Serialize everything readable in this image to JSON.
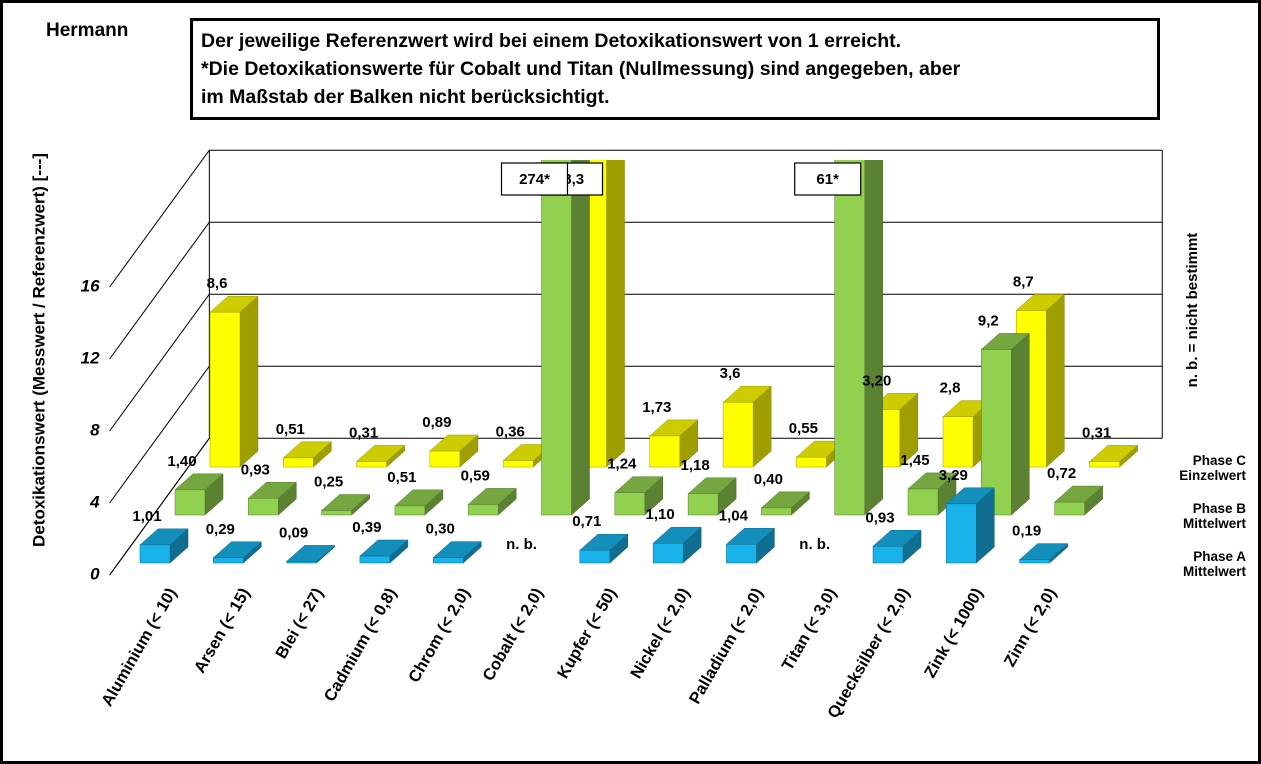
{
  "chart_data": {
    "type": "bar3d",
    "title": "Hermann",
    "note": [
      "Der jeweilige Referenzwert wird bei einem Detoxikationswert von 1 erreicht.",
      "*Die Detoxikationswerte für Cobalt und Titan (Nullmessung) sind angegeben, aber",
      "im Maßstab der Balken nicht berücksichtigt."
    ],
    "y_label": "Detoxikationswert (Messwert / Referenzwert) [---]",
    "side_note": "n. b. = nicht bestimmt",
    "categories": [
      "Aluminium (< 10)",
      "Arsen (< 15)",
      "Blei (< 27)",
      "Cadmium (< 0,8)",
      "Chrom (< 2,0)",
      "Cobalt (< 2,0)",
      "Kupfer (< 50)",
      "Nickel (< 2,0)",
      "Palladium (< 2,0)",
      "Titan (< 3,0)",
      "Quecksilber (< 2,0)",
      "Zink (< 1000)",
      "Zinn (< 2,0)"
    ],
    "series": [
      {
        "name": "Phase A Mittelwert",
        "color": "#19b2ea",
        "values": [
          1.01,
          0.29,
          0.09,
          0.39,
          0.3,
          null,
          0.71,
          1.1,
          1.04,
          null,
          0.93,
          3.29,
          0.19
        ],
        "value_labels": [
          "1,01",
          "0,29",
          "0,09",
          "0,39",
          "0,30",
          "n. b.",
          "0,71",
          "1,10",
          "1,04",
          "n. b.",
          "0,93",
          "3,29",
          "0,19"
        ]
      },
      {
        "name": "Phase B Mittelwert",
        "color": "#92d050",
        "values": [
          1.4,
          0.93,
          0.25,
          0.51,
          0.59,
          274,
          1.24,
          1.18,
          0.4,
          61,
          1.45,
          9.2,
          0.72
        ],
        "value_labels": [
          "1,40",
          "0,93",
          "0,25",
          "0,51",
          "0,59",
          "274*",
          "1,24",
          "1,18",
          "0,40",
          "61*",
          "1,45",
          "9,2",
          "0,72"
        ]
      },
      {
        "name": "Phase C Einzelwert",
        "color": "#ffff00",
        "values": [
          8.6,
          0.51,
          0.31,
          0.89,
          0.36,
          18.3,
          1.73,
          3.6,
          0.55,
          3.2,
          2.8,
          8.7,
          0.31
        ],
        "value_labels": [
          "8,6",
          "0,51",
          "0,31",
          "0,89",
          "0,36",
          "18,3",
          "1,73",
          "3,6",
          "0,55",
          "3,20",
          "2,8",
          "8,7",
          "0,31"
        ]
      }
    ],
    "ylim": [
      0,
      16
    ],
    "yticks": [
      0,
      4,
      8,
      12,
      16
    ],
    "grid": true
  }
}
